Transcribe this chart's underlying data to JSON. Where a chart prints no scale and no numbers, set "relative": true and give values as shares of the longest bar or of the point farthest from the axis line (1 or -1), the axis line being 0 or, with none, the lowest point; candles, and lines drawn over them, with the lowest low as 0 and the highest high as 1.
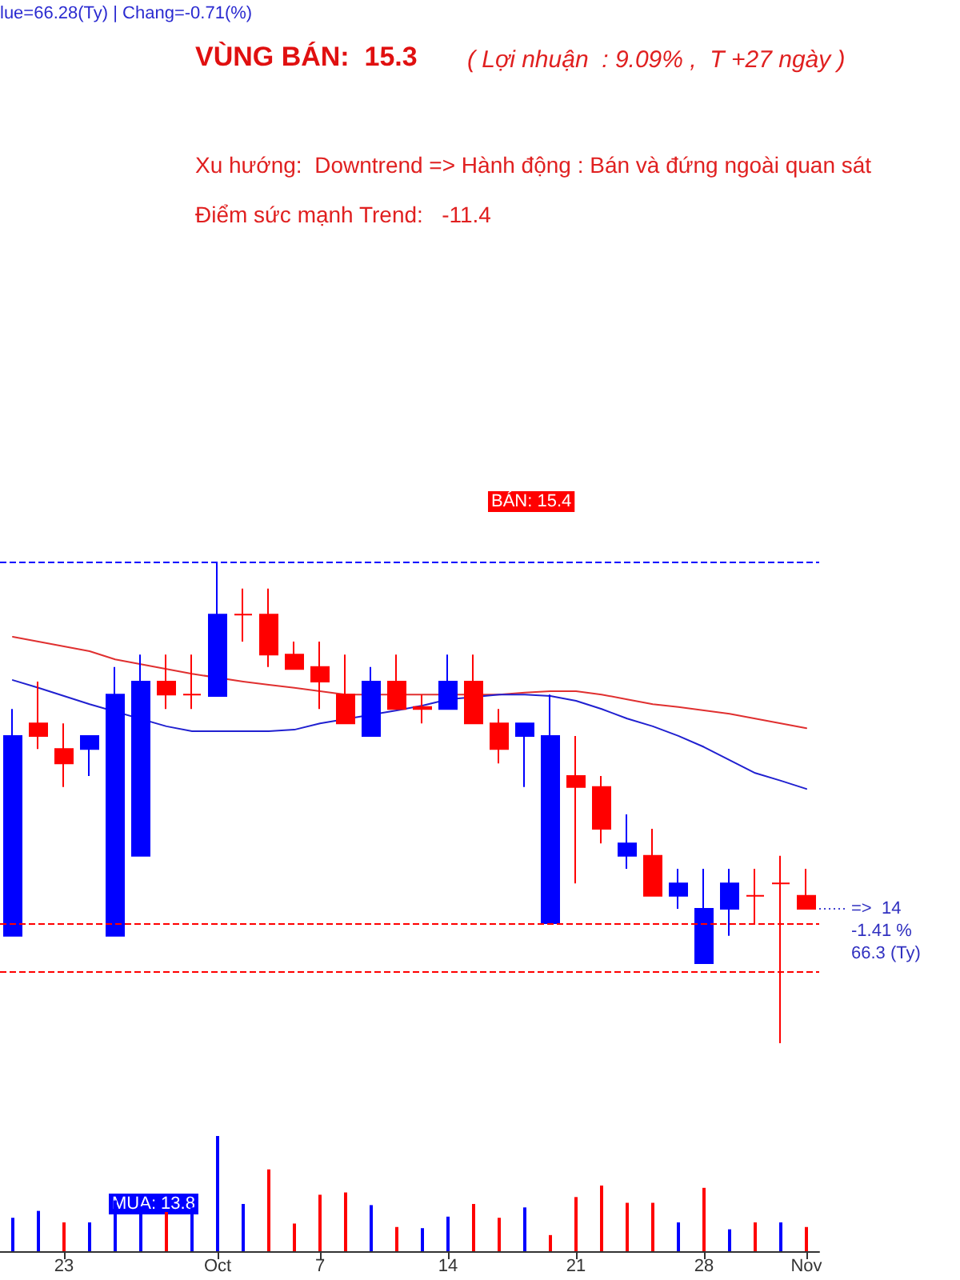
{
  "chart_data": [
    {
      "type": "candlestick",
      "title": "VÙNG BÁN:  15.3",
      "subtitle": "( Lợi nhuận  : 9.09% ,  T +27 ngày )",
      "relative": true,
      "tick_labels": false,
      "categories": [
        null,
        null,
        "23",
        null,
        null,
        null,
        null,
        null,
        "Oct",
        null,
        null,
        null,
        "7",
        null,
        null,
        null,
        null,
        "14",
        null,
        null,
        null,
        null,
        "21",
        null,
        null,
        null,
        null,
        "28",
        null,
        null,
        null,
        "Nov"
      ],
      "series": [
        {
          "type": "candlestick",
          "ohlc": [
            [
              0.223,
              0.694,
              0.223,
              0.638
            ],
            [
              0.664,
              0.751,
              0.611,
              0.638
            ],
            [
              0.611,
              0.664,
              0.532,
              0.581
            ],
            [
              0.611,
              0.638,
              0.555,
              0.638
            ],
            [
              0.223,
              0.781,
              0.223,
              0.724
            ],
            [
              0.389,
              0.807,
              0.389,
              0.751
            ],
            [
              0.751,
              0.807,
              0.694,
              0.724
            ],
            [
              0.724,
              0.807,
              0.694,
              0.724
            ],
            [
              0.721,
              1.0,
              0.721,
              0.89
            ],
            [
              0.89,
              0.944,
              0.834,
              0.89
            ],
            [
              0.89,
              0.944,
              0.781,
              0.807
            ],
            [
              0.807,
              0.834,
              0.777,
              0.777
            ],
            [
              0.781,
              0.834,
              0.694,
              0.751
            ],
            [
              0.724,
              0.807,
              0.664,
              0.664
            ],
            [
              0.638,
              0.781,
              0.638,
              0.751
            ],
            [
              0.751,
              0.807,
              0.694,
              0.694
            ],
            [
              0.698,
              0.724,
              0.664,
              0.694
            ],
            [
              0.694,
              0.807,
              0.694,
              0.751
            ],
            [
              0.751,
              0.807,
              0.664,
              0.664
            ],
            [
              0.664,
              0.694,
              0.581,
              0.611
            ],
            [
              0.638,
              0.664,
              0.532,
              0.664
            ],
            [
              0.249,
              0.724,
              0.249,
              0.638
            ],
            [
              0.555,
              0.638,
              0.332,
              0.532
            ],
            [
              0.532,
              0.555,
              0.415,
              0.445
            ],
            [
              0.389,
              0.475,
              0.362,
              0.415
            ],
            [
              0.389,
              0.445,
              0.306,
              0.306
            ],
            [
              0.306,
              0.362,
              0.279,
              0.332
            ],
            [
              0.166,
              0.362,
              0.166,
              0.279
            ],
            [
              0.279,
              0.362,
              0.223,
              0.332
            ],
            [
              0.306,
              0.362,
              0.249,
              0.306
            ],
            [
              0.332,
              0.389,
              0.0,
              0.332
            ],
            [
              0.306,
              0.362,
              0.279,
              0.279
            ]
          ],
          "colors": [
            "#0000ff",
            "#ff0000",
            "#ff0000",
            "#0000ff",
            "#0000ff",
            "#0000ff",
            "#ff0000",
            "#ff0000",
            "#0000ff",
            "#ff0000",
            "#ff0000",
            "#ff0000",
            "#ff0000",
            "#ff0000",
            "#0000ff",
            "#ff0000",
            "#ff0000",
            "#0000ff",
            "#ff0000",
            "#ff0000",
            "#0000ff",
            "#0000ff",
            "#ff0000",
            "#ff0000",
            "#0000ff",
            "#ff0000",
            "#0000ff",
            "#0000ff",
            "#0000ff",
            "#ff0000",
            "#ff0000",
            "#ff0000"
          ]
        },
        {
          "type": "line",
          "color": "#e03030",
          "values": [
            0.844,
            0.834,
            0.824,
            0.814,
            0.797,
            0.787,
            0.777,
            0.767,
            null,
            0.751,
            0.744,
            0.738,
            0.731,
            0.724,
            null,
            0.724,
            0.724,
            null,
            null,
            0.724,
            0.728,
            0.731,
            0.731,
            0.724,
            0.714,
            0.704,
            0.698,
            0.691,
            0.684,
            0.674,
            0.664,
            0.654
          ]
        },
        {
          "type": "line",
          "color": "#2020d0",
          "values": [
            0.754,
            0.738,
            0.721,
            0.704,
            null,
            null,
            0.658,
            0.648,
            0.648,
            0.648,
            0.648,
            0.651,
            0.664,
            null,
            null,
            0.691,
            0.701,
            0.714,
            null,
            0.724,
            0.724,
            0.721,
            0.711,
            0.694,
            0.674,
            0.658,
            0.638,
            0.615,
            0.588,
            0.561,
            0.545,
            0.528
          ]
        }
      ],
      "marker": "none",
      "line_style": "solid",
      "ref_lines": [
        {
          "axis": "y",
          "value": 1.0,
          "color": "#0000ff",
          "line_style": "dashed"
        },
        {
          "axis": "y",
          "value": 0.146,
          "color": "#ff0000",
          "line_style": "dashed"
        },
        {
          "axis": "y",
          "value": 0.249,
          "color": "#ff0000",
          "line_style": "dashed"
        }
      ],
      "annotations": [
        "lue=66.28(Ty) | Chang=-0.71(%)",
        "Xu hướng:  Downtrend => Hành động : Bán và đứng ngoài quan sát",
        "Điểm sức mạnh Trend:   -11.4",
        "BÁN: 15.4",
        {
          "text": "=>  14\n-1.41 %\n66.3 (Ty)",
          "x": "Nov",
          "y": 0.279
        }
      ]
    },
    {
      "type": "bar",
      "relative": true,
      "categories": [
        null,
        null,
        "23",
        null,
        null,
        null,
        null,
        null,
        "Oct",
        null,
        null,
        null,
        "7",
        null,
        null,
        null,
        null,
        "14",
        null,
        null,
        null,
        null,
        "21",
        null,
        null,
        null,
        null,
        "28",
        null,
        null,
        null,
        "Nov"
      ],
      "values": [
        0.29,
        0.35,
        0.25,
        0.25,
        0.44,
        0.39,
        0.34,
        0.38,
        1.0,
        0.41,
        0.71,
        0.24,
        0.49,
        0.51,
        0.4,
        0.21,
        0.2,
        0.3,
        0.41,
        0.29,
        0.38,
        0.14,
        0.47,
        0.57,
        0.42,
        0.42,
        0.25,
        0.55,
        0.19,
        0.25,
        0.25,
        0.21
      ],
      "colors": [
        "#0000ff",
        "#0000ff",
        "#ff0000",
        "#0000ff",
        "#0000ff",
        "#0000ff",
        "#ff0000",
        "#0000ff",
        "#0000ff",
        "#0000ff",
        "#ff0000",
        "#ff0000",
        "#ff0000",
        "#ff0000",
        "#0000ff",
        "#ff0000",
        "#0000ff",
        "#0000ff",
        "#ff0000",
        "#ff0000",
        "#0000ff",
        "#ff0000",
        "#ff0000",
        "#ff0000",
        "#ff0000",
        "#ff0000",
        "#0000ff",
        "#ff0000",
        "#0000ff",
        "#ff0000",
        "#0000ff",
        "#ff0000"
      ],
      "annotations": [
        "MUA: 13.8"
      ]
    }
  ]
}
